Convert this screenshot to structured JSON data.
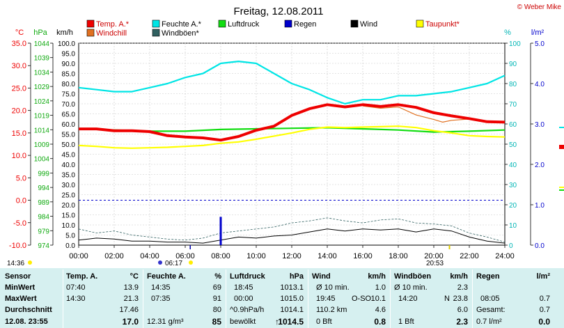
{
  "title": "Freitag, 12.08.2011",
  "credit": "© Weber Mike",
  "colors": {
    "temp": "#ee0000",
    "humidity": "#00e5e5",
    "pressure": "#11dd11",
    "rain": "#0000cc",
    "wind": "#000000",
    "dewpoint": "#ffff00",
    "windchill": "#e07020",
    "gust": "#306060",
    "panel": "#d6f0f0"
  },
  "legend": [
    {
      "label": "Temp. A.*",
      "color": "#ee0000"
    },
    {
      "label": "Feuchte A.*",
      "color": "#00e5e5"
    },
    {
      "label": "Luftdruck",
      "color": "#11dd11"
    },
    {
      "label": "Regen",
      "color": "#0000cc"
    },
    {
      "label": "Wind",
      "color": "#000000"
    },
    {
      "label": "Taupunkt*",
      "color": "#ffff00"
    },
    {
      "label": "Windchill",
      "color": "#e07020"
    },
    {
      "label": "Windböen*",
      "color": "#306060"
    }
  ],
  "axis_headers": {
    "temp": "°C",
    "pressure": "hPa",
    "wind": "km/h",
    "humidity": "%",
    "rain": "l/m²"
  },
  "axes": {
    "temp_ticks": [
      "35.0",
      "30.0",
      "25.0",
      "20.0",
      "15.0",
      "10.0",
      "5.0",
      "0.0",
      "-5.0",
      "-10.0"
    ],
    "pressure_ticks": [
      "1044",
      "1039",
      "1034",
      "1029",
      "1024",
      "1019",
      "1014",
      "1009",
      "1004",
      "999",
      "994",
      "989",
      "984",
      "979",
      "974"
    ],
    "wind_ticks": [
      "100.0",
      "95.0",
      "90.0",
      "85.0",
      "80.0",
      "75.0",
      "70.0",
      "65.0",
      "60.0",
      "55.0",
      "50.0",
      "45.0",
      "40.0",
      "35.0",
      "30.0",
      "25.0",
      "20.0",
      "15.0",
      "10.0",
      "5.0",
      "0.0"
    ],
    "humidity_ticks": [
      "100",
      "90",
      "80",
      "70",
      "60",
      "50",
      "40",
      "30",
      "20",
      "10",
      "0"
    ],
    "rain_ticks": [
      "5.0",
      "4.0",
      "3.0",
      "2.0",
      "1.0",
      "0.0"
    ],
    "x_ticks": [
      "00:00",
      "02:00",
      "04:00",
      "06:00",
      "08:00",
      "10:00",
      "12:00",
      "14:00",
      "16:00",
      "18:00",
      "20:00",
      "22:00",
      "24:00"
    ]
  },
  "sun": {
    "sunrise": "06:17",
    "sunset": "20:53",
    "left_time": "14:36"
  },
  "chart_data": {
    "type": "line",
    "title": "Freitag, 12.08.2011",
    "x_unit": "hours",
    "xlim": [
      0,
      24
    ],
    "series": [
      {
        "name": "Temp. A.*",
        "unit": "°C",
        "axis": "temp",
        "ylim": [
          -10,
          35
        ],
        "x": [
          0,
          1,
          2,
          3,
          4,
          5,
          6,
          7,
          8,
          9,
          10,
          11,
          12,
          13,
          14,
          15,
          16,
          17,
          18,
          19,
          20,
          21,
          22,
          23,
          24
        ],
        "y": [
          15.9,
          15.9,
          15.5,
          15.5,
          15.3,
          14.4,
          14.1,
          13.9,
          13.4,
          14.2,
          15.6,
          16.5,
          18.9,
          20.4,
          21.3,
          20.8,
          21.3,
          20.9,
          21.3,
          20.7,
          19.5,
          18.8,
          18.2,
          17.5,
          17.4
        ]
      },
      {
        "name": "Feuchte A.*",
        "unit": "%",
        "axis": "humidity",
        "ylim": [
          0,
          100
        ],
        "x": [
          0,
          1,
          2,
          3,
          4,
          5,
          6,
          7,
          8,
          9,
          10,
          11,
          12,
          13,
          14,
          15,
          16,
          17,
          18,
          19,
          20,
          21,
          22,
          23,
          24
        ],
        "y": [
          78,
          77,
          76,
          76,
          78,
          80,
          83,
          85,
          90,
          91,
          90,
          85,
          80,
          77,
          73,
          70,
          72,
          72,
          74,
          74,
          75,
          76,
          78,
          80,
          84
        ]
      },
      {
        "name": "Luftdruck",
        "unit": "hPa",
        "axis": "pressure",
        "ylim": [
          974,
          1044
        ],
        "x": [
          0,
          2,
          4,
          6,
          8,
          10,
          12,
          14,
          16,
          18,
          20,
          22,
          24
        ],
        "y": [
          1014.3,
          1013.9,
          1013.5,
          1013.5,
          1014.1,
          1014.3,
          1014.5,
          1014.7,
          1014.3,
          1013.9,
          1013.2,
          1013.5,
          1013.9
        ]
      },
      {
        "name": "Taupunkt*",
        "unit": "°C",
        "axis": "temp",
        "ylim": [
          -10,
          35
        ],
        "x": [
          0,
          1,
          2,
          3,
          4,
          5,
          6,
          7,
          8,
          9,
          10,
          11,
          12,
          13,
          14,
          15,
          16,
          17,
          18,
          19,
          20,
          21,
          22,
          23,
          24
        ],
        "y": [
          12.2,
          12.0,
          11.7,
          11.6,
          11.7,
          11.8,
          12.0,
          12.2,
          12.7,
          13.0,
          13.6,
          14.3,
          15.0,
          15.8,
          16.3,
          16.2,
          16.3,
          16.4,
          16.5,
          16.2,
          15.5,
          15.0,
          14.4,
          14.2,
          14.1
        ]
      },
      {
        "name": "Windchill",
        "unit": "°C",
        "axis": "temp",
        "ylim": [
          -10,
          35
        ],
        "x": [
          16,
          17,
          18,
          19,
          20,
          20.5,
          21,
          22
        ],
        "y": [
          21.0,
          20.5,
          20.8,
          19.0,
          18.0,
          17.4,
          17.8,
          18.1
        ]
      },
      {
        "name": "Wind",
        "unit": "km/h",
        "axis": "wind",
        "ylim": [
          0,
          100
        ],
        "x": [
          0,
          1,
          2,
          3,
          4,
          5,
          6,
          7,
          8,
          9,
          10,
          11,
          12,
          13,
          14,
          15,
          16,
          17,
          18,
          19,
          20,
          21,
          22,
          23,
          24
        ],
        "y": [
          2.5,
          3.5,
          3.0,
          2.0,
          2.0,
          1.5,
          1.5,
          1.0,
          2.5,
          4.0,
          3.5,
          4.5,
          5.0,
          6.5,
          8.0,
          7.0,
          8.0,
          7.5,
          8.0,
          6.5,
          8.0,
          7.0,
          4.0,
          2.0,
          1.0
        ]
      },
      {
        "name": "Windböen*",
        "unit": "km/h",
        "axis": "wind",
        "ylim": [
          0,
          100
        ],
        "x": [
          0,
          1,
          2,
          3,
          4,
          5,
          6,
          7,
          8,
          9,
          10,
          11,
          12,
          13,
          14,
          15,
          16,
          17,
          18,
          19,
          20,
          21,
          22,
          23,
          24
        ],
        "y": [
          8.0,
          6.0,
          7.0,
          5.0,
          4.0,
          3.0,
          2.5,
          3.5,
          6.0,
          7.0,
          8.0,
          9.0,
          11.0,
          12.0,
          13.5,
          12.0,
          11.0,
          12.5,
          13.0,
          11.0,
          10.5,
          9.5,
          6.0,
          4.0,
          1.5
        ]
      },
      {
        "name": "Regen",
        "unit": "l/m²",
        "axis": "rain",
        "ylim": [
          0,
          5
        ],
        "x": [
          8.0
        ],
        "y": [
          0.7
        ]
      }
    ]
  },
  "stats": {
    "labels": {
      "title": "Sensor",
      "min": "MinWert",
      "max": "MaxWert",
      "avg": "Durchschnitt",
      "now": "12.08. 23:55"
    },
    "temp": {
      "title": "Temp. A.",
      "unit": "°C",
      "min_time": "07:40",
      "min": "13.9",
      "max_time": "14:30",
      "max": "21.3",
      "avg": "17.46",
      "now": "17.0"
    },
    "humidity": {
      "title": "Feuchte A.",
      "unit": "%",
      "min_time": "14:35",
      "min": "69",
      "max_time": "07:35",
      "max": "91",
      "avg": "80",
      "now_extra": "12.31 g/m³",
      "now": "85"
    },
    "pressure": {
      "title": "Luftdruck",
      "unit": "hPa",
      "min_time": "18:45",
      "min": "1013.1",
      "max_time": "00:00",
      "max": "1015.0",
      "avg_label": "^0.9hPa/h",
      "avg": "1014.1",
      "now_extra": "bewölkt",
      "now_arrow": "↑",
      "now": "1014.5"
    },
    "wind": {
      "title": "Wind",
      "unit": "km/h",
      "r1_label": "Ø 10 min.",
      "r1": "1.0",
      "r2_time": "19:45",
      "r2_dir": "O-SO",
      "r2": "10.1",
      "r3_label": "110.2 km",
      "r3": "4.6",
      "r4_label": "0 Bft",
      "r4": "0.8"
    },
    "gust": {
      "title": "Windböen",
      "unit": "km/h",
      "r1_label": "Ø 10 min.",
      "r1": "2.3",
      "r2_time": "14:20",
      "r2_dir": "N",
      "r2": "23.8",
      "r3": "6.0",
      "r4_label": "1 Bft",
      "r4": "2.3"
    },
    "rain": {
      "title": "Regen",
      "unit": "l/m²",
      "r2_time": "08:05",
      "r2": "0.7",
      "r3_label": "Gesamt:",
      "r3": "0.7",
      "r4_label": "0.7 l/m²",
      "r4": "0.0"
    }
  }
}
